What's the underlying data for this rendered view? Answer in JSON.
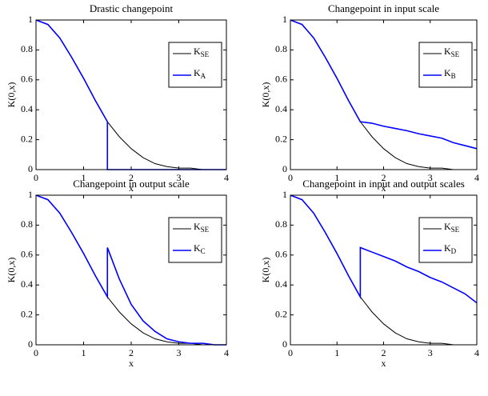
{
  "chart_data": [
    {
      "type": "line",
      "title": "Drastic changepoint",
      "xlabel": "x",
      "ylabel": "K(0,x)",
      "x": [
        0,
        0.25,
        0.5,
        0.75,
        1,
        1.25,
        1.5,
        1.5,
        1.75,
        2,
        2.25,
        2.5,
        2.75,
        3,
        3.25,
        3.5,
        3.75,
        4
      ],
      "series": [
        {
          "name": "K_SE",
          "color": "#000000",
          "values": [
            1,
            0.97,
            0.88,
            0.75,
            0.61,
            0.46,
            0.32,
            0.32,
            0.22,
            0.14,
            0.08,
            0.04,
            0.02,
            0.01,
            0.01,
            0,
            0,
            0
          ]
        },
        {
          "name": "K_A",
          "color": "#0000ff",
          "values": [
            1,
            0.97,
            0.88,
            0.75,
            0.61,
            0.46,
            0.32,
            0,
            0,
            0,
            0,
            0,
            0,
            0,
            0,
            0,
            0,
            0
          ]
        }
      ],
      "xlim": [
        0,
        4
      ],
      "xticks": [
        0,
        1,
        2,
        3,
        4
      ],
      "ylim": [
        0,
        1
      ],
      "yticks": [
        0,
        0.2,
        0.4,
        0.6,
        0.8,
        1
      ],
      "legend": "upper right"
    },
    {
      "type": "line",
      "title": "Changepoint in input scale",
      "xlabel": "x",
      "ylabel": "K(0,x)",
      "x": [
        0,
        0.25,
        0.5,
        0.75,
        1,
        1.25,
        1.5,
        1.5,
        1.75,
        2,
        2.25,
        2.5,
        2.75,
        3,
        3.25,
        3.5,
        3.75,
        4
      ],
      "series": [
        {
          "name": "K_SE",
          "color": "#000000",
          "values": [
            1,
            0.97,
            0.88,
            0.75,
            0.61,
            0.46,
            0.32,
            0.32,
            0.22,
            0.14,
            0.08,
            0.04,
            0.02,
            0.01,
            0.01,
            0,
            0,
            0
          ]
        },
        {
          "name": "K_B",
          "color": "#0000ff",
          "values": [
            1,
            0.97,
            0.88,
            0.75,
            0.61,
            0.46,
            0.32,
            0.32,
            0.31,
            0.29,
            0.275,
            0.26,
            0.24,
            0.225,
            0.21,
            0.18,
            0.16,
            0.14
          ]
        }
      ],
      "xlim": [
        0,
        4
      ],
      "xticks": [
        0,
        1,
        2,
        3,
        4
      ],
      "ylim": [
        0,
        1
      ],
      "yticks": [
        0,
        0.2,
        0.4,
        0.6,
        0.8,
        1
      ],
      "legend": "upper right"
    },
    {
      "type": "line",
      "title": "Changepoint in output scale",
      "xlabel": "x",
      "ylabel": "K(0,x)",
      "x": [
        0,
        0.25,
        0.5,
        0.75,
        1,
        1.25,
        1.5,
        1.5,
        1.75,
        2,
        2.25,
        2.5,
        2.75,
        3,
        3.25,
        3.5,
        3.75,
        4
      ],
      "series": [
        {
          "name": "K_SE",
          "color": "#000000",
          "values": [
            1,
            0.97,
            0.88,
            0.75,
            0.61,
            0.46,
            0.32,
            0.32,
            0.22,
            0.14,
            0.08,
            0.04,
            0.02,
            0.01,
            0.01,
            0,
            0,
            0
          ]
        },
        {
          "name": "K_C",
          "color": "#0000ff",
          "values": [
            1,
            0.97,
            0.88,
            0.75,
            0.61,
            0.46,
            0.32,
            0.65,
            0.44,
            0.27,
            0.16,
            0.09,
            0.04,
            0.02,
            0.01,
            0.01,
            0,
            0
          ]
        }
      ],
      "xlim": [
        0,
        4
      ],
      "xticks": [
        0,
        1,
        2,
        3,
        4
      ],
      "ylim": [
        0,
        1
      ],
      "yticks": [
        0,
        0.2,
        0.4,
        0.6,
        0.8,
        1
      ],
      "legend": "upper right"
    },
    {
      "type": "line",
      "title": "Changepoint in input and output scales",
      "xlabel": "x",
      "ylabel": "K(0,x)",
      "x": [
        0,
        0.25,
        0.5,
        0.75,
        1,
        1.25,
        1.5,
        1.5,
        1.75,
        2,
        2.25,
        2.5,
        2.75,
        3,
        3.25,
        3.5,
        3.75,
        4
      ],
      "series": [
        {
          "name": "K_SE",
          "color": "#000000",
          "values": [
            1,
            0.97,
            0.88,
            0.75,
            0.61,
            0.46,
            0.32,
            0.32,
            0.22,
            0.14,
            0.08,
            0.04,
            0.02,
            0.01,
            0.01,
            0,
            0,
            0
          ]
        },
        {
          "name": "K_D",
          "color": "#0000ff",
          "values": [
            1,
            0.97,
            0.88,
            0.75,
            0.61,
            0.46,
            0.32,
            0.65,
            0.62,
            0.59,
            0.56,
            0.52,
            0.49,
            0.45,
            0.42,
            0.38,
            0.34,
            0.28
          ]
        }
      ],
      "xlim": [
        0,
        4
      ],
      "xticks": [
        0,
        1,
        2,
        3,
        4
      ],
      "ylim": [
        0,
        1
      ],
      "yticks": [
        0,
        0.2,
        0.4,
        0.6,
        0.8,
        1
      ],
      "legend": "upper right"
    }
  ]
}
